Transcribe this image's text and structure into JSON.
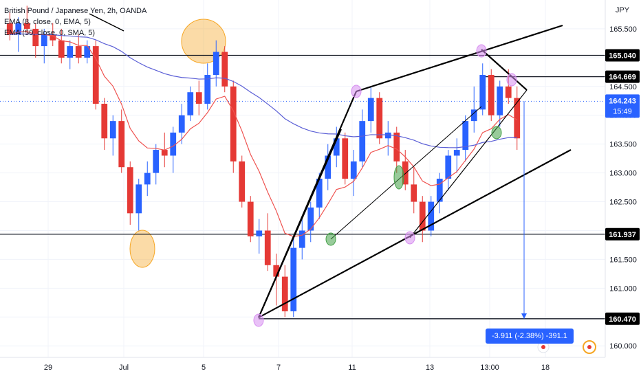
{
  "legend": {
    "symbol": "British Pound / Japanese Yen, 2h, OANDA",
    "ema8": "EMA (8, close, 0, EMA, 5)",
    "ema50": "EMA (50, close, 0, SMA, 5)"
  },
  "price_axis": {
    "currency": "JPY",
    "ticks": [
      "165.500",
      "165.000",
      "164.500",
      "164.000",
      "163.500",
      "163.000",
      "162.500",
      "162.000",
      "161.500",
      "161.000",
      "160.500",
      "160.000"
    ]
  },
  "price_labels": {
    "level_165040": "165.040",
    "level_164669": "164.669",
    "current_price": "164.243",
    "countdown": "15:49",
    "level_161937": "161.937",
    "level_160470": "160.470"
  },
  "measure_label": "-3.911 (-2.38%) -391.1",
  "time_axis": {
    "labels": [
      "29",
      "Jul",
      "5",
      "7",
      "11",
      "13",
      "13:00",
      "18"
    ]
  },
  "colors": {
    "up": "#2962ff",
    "down": "#e53935",
    "ema8": "#ef5350",
    "ema50": "#5b5fd6",
    "orange_marker": "#f6a623",
    "purple_marker": "#d78ef0",
    "green_marker": "#43a047",
    "current_price_bg": "#2962ff",
    "measure_bg": "#2962ff"
  },
  "chart_data": {
    "type": "candlestick",
    "symbol": "GBPJPY",
    "interval": "2h",
    "ylim": [
      159.8,
      166.0
    ],
    "horizontal_levels": [
      165.04,
      164.669,
      161.937,
      160.47
    ],
    "current_price": 164.243,
    "candles": [
      [
        165.6,
        165.8,
        165.3,
        165.4
      ],
      [
        165.4,
        165.7,
        165.1,
        165.6
      ],
      [
        165.6,
        165.9,
        165.4,
        165.5
      ],
      [
        165.5,
        165.6,
        165.0,
        165.2
      ],
      [
        165.2,
        165.5,
        164.9,
        165.4
      ],
      [
        165.4,
        165.6,
        165.2,
        165.3
      ],
      [
        165.3,
        165.5,
        164.9,
        165.0
      ],
      [
        165.0,
        165.3,
        164.8,
        165.2
      ],
      [
        165.2,
        165.4,
        164.9,
        165.0
      ],
      [
        165.0,
        165.3,
        164.9,
        165.2
      ],
      [
        165.2,
        165.3,
        164.1,
        164.2
      ],
      [
        164.2,
        164.3,
        163.4,
        163.6
      ],
      [
        163.6,
        164.0,
        163.3,
        163.9
      ],
      [
        163.9,
        164.1,
        163.0,
        163.1
      ],
      [
        163.1,
        163.2,
        162.1,
        162.3
      ],
      [
        162.3,
        162.9,
        162.0,
        162.8
      ],
      [
        162.8,
        163.2,
        162.6,
        163.0
      ],
      [
        163.0,
        163.5,
        162.8,
        163.4
      ],
      [
        163.4,
        163.7,
        163.1,
        163.3
      ],
      [
        163.3,
        163.8,
        163.0,
        163.7
      ],
      [
        163.7,
        164.2,
        163.5,
        164.0
      ],
      [
        164.0,
        164.5,
        163.9,
        164.4
      ],
      [
        164.4,
        164.6,
        164.0,
        164.2
      ],
      [
        164.2,
        164.9,
        164.1,
        164.7
      ],
      [
        164.7,
        165.3,
        164.5,
        165.1
      ],
      [
        165.1,
        165.2,
        164.4,
        164.5
      ],
      [
        164.5,
        164.6,
        163.0,
        163.2
      ],
      [
        163.2,
        163.3,
        162.4,
        162.5
      ],
      [
        162.5,
        162.6,
        161.8,
        161.9
      ],
      [
        161.9,
        162.2,
        161.6,
        162.0
      ],
      [
        162.0,
        162.3,
        161.3,
        161.4
      ],
      [
        161.4,
        161.6,
        160.7,
        161.2
      ],
      [
        161.2,
        161.4,
        160.5,
        160.6
      ],
      [
        160.6,
        161.9,
        160.5,
        161.7
      ],
      [
        161.7,
        162.2,
        161.5,
        162.0
      ],
      [
        162.0,
        162.5,
        161.8,
        162.4
      ],
      [
        162.4,
        163.0,
        162.2,
        162.9
      ],
      [
        162.9,
        163.5,
        162.7,
        163.3
      ],
      [
        163.3,
        163.8,
        163.1,
        163.6
      ],
      [
        163.6,
        163.7,
        162.8,
        162.9
      ],
      [
        162.9,
        163.4,
        162.6,
        163.2
      ],
      [
        163.2,
        164.1,
        163.1,
        163.9
      ],
      [
        163.9,
        164.5,
        163.7,
        164.3
      ],
      [
        164.3,
        164.4,
        163.5,
        163.6
      ],
      [
        163.6,
        163.9,
        163.3,
        163.7
      ],
      [
        163.7,
        163.8,
        163.0,
        163.2
      ],
      [
        163.2,
        163.4,
        162.7,
        162.8
      ],
      [
        162.8,
        163.1,
        162.3,
        162.5
      ],
      [
        162.5,
        162.6,
        161.8,
        162.0
      ],
      [
        162.0,
        162.6,
        161.9,
        162.5
      ],
      [
        162.5,
        163.0,
        162.3,
        162.9
      ],
      [
        162.9,
        163.4,
        162.7,
        163.3
      ],
      [
        163.3,
        163.6,
        163.0,
        163.4
      ],
      [
        163.4,
        164.0,
        163.2,
        163.9
      ],
      [
        163.9,
        164.5,
        163.7,
        164.1
      ],
      [
        164.1,
        164.9,
        164.0,
        164.7
      ],
      [
        164.7,
        164.8,
        163.9,
        164.0
      ],
      [
        164.0,
        164.6,
        163.8,
        164.5
      ],
      [
        164.5,
        164.8,
        164.2,
        164.3
      ],
      [
        164.3,
        164.5,
        163.4,
        163.6
      ]
    ]
  }
}
